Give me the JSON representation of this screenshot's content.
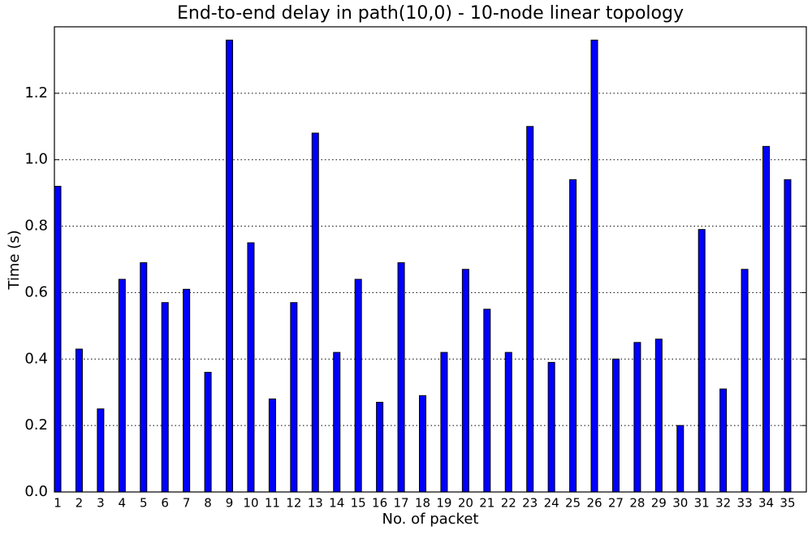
{
  "chart_data": {
    "type": "bar",
    "title": "End-to-end delay in path(10,0) - 10-node linear topology",
    "x_label": "No. of packet",
    "y_label": "Time (s)",
    "categories": [
      "1",
      "2",
      "3",
      "4",
      "5",
      "6",
      "7",
      "8",
      "9",
      "10",
      "11",
      "12",
      "13",
      "14",
      "15",
      "16",
      "17",
      "18",
      "19",
      "20",
      "21",
      "22",
      "23",
      "24",
      "25",
      "26",
      "27",
      "28",
      "29",
      "30",
      "31",
      "32",
      "33",
      "34",
      "35"
    ],
    "values": [
      0.92,
      0.43,
      0.25,
      0.64,
      0.69,
      0.57,
      0.61,
      0.36,
      1.36,
      0.75,
      0.28,
      0.57,
      1.08,
      0.42,
      0.64,
      0.27,
      0.69,
      0.29,
      0.42,
      0.67,
      0.55,
      0.42,
      1.1,
      0.39,
      0.94,
      1.36,
      0.4,
      0.45,
      0.46,
      0.2,
      0.79,
      0.31,
      0.67,
      1.04,
      0.94
    ],
    "color": "#0000ff",
    "ylim": [
      0,
      1.4
    ],
    "yticks": [
      {
        "value": 0,
        "label": "0.0"
      },
      0.2,
      0.4,
      0.6,
      0.8,
      {
        "value": 1,
        "label": "1.0"
      },
      1.2
    ],
    "grid": true
  }
}
